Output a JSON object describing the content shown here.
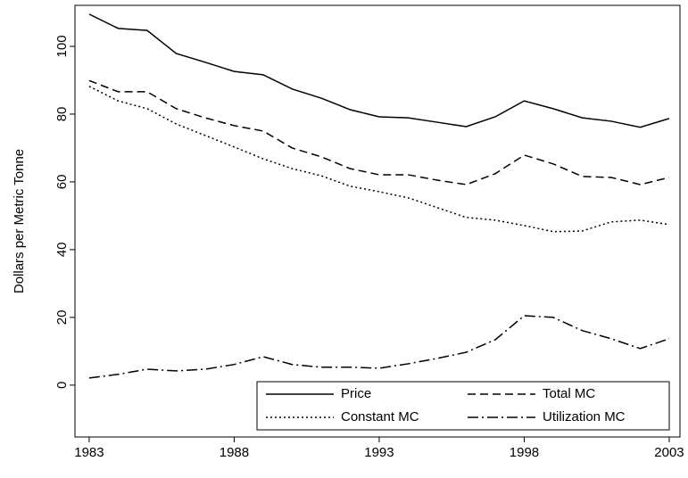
{
  "chart_data": {
    "type": "line",
    "y_label": "Dollars per Metric Tonne",
    "x": [
      1983,
      1984,
      1985,
      1986,
      1987,
      1988,
      1989,
      1990,
      1991,
      1992,
      1993,
      1994,
      1995,
      1996,
      1997,
      1998,
      1999,
      2000,
      2001,
      2002,
      2003
    ],
    "series": [
      {
        "name": "Price",
        "color": "#000000",
        "dash": "solid",
        "values": [
          109.5,
          105.3,
          104.7,
          97.9,
          95.3,
          92.6,
          91.6,
          87.4,
          84.7,
          81.3,
          79.2,
          78.9,
          77.6,
          76.3,
          79.2,
          83.9,
          81.6,
          78.9,
          77.9,
          76.1,
          78.7
        ]
      },
      {
        "name": "Total MC",
        "color": "#000000",
        "dash": "dash",
        "values": [
          89.9,
          86.6,
          86.6,
          81.6,
          78.9,
          76.6,
          75.0,
          70.0,
          67.4,
          63.9,
          62.1,
          62.1,
          60.5,
          59.2,
          62.4,
          67.9,
          65.3,
          61.6,
          61.3,
          59.2,
          61.3
        ]
      },
      {
        "name": "Constant MC",
        "color": "#000000",
        "dash": "dot",
        "values": [
          88.2,
          83.9,
          81.6,
          77.1,
          73.7,
          70.3,
          66.8,
          63.9,
          61.8,
          58.7,
          57.1,
          55.3,
          52.4,
          49.5,
          48.7,
          47.1,
          45.3,
          45.5,
          48.2,
          48.7,
          47.4
        ]
      },
      {
        "name": "Utilization MC",
        "color": "#000000",
        "dash": "dashdot",
        "values": [
          2.1,
          3.2,
          4.7,
          4.2,
          4.7,
          6.1,
          8.4,
          6.1,
          5.3,
          5.3,
          5.0,
          6.3,
          7.9,
          9.7,
          13.4,
          20.5,
          20.0,
          16.1,
          13.7,
          10.8,
          13.7
        ]
      }
    ],
    "xlim": [
      1982.51,
      2003.37
    ],
    "xticks": [
      1983,
      1988,
      1993,
      1998,
      2003
    ],
    "ylim": [
      -15.3,
      112.1
    ],
    "yticks": [
      0,
      20,
      40,
      60,
      80,
      100
    ],
    "grid": false,
    "legend": "lower right"
  }
}
